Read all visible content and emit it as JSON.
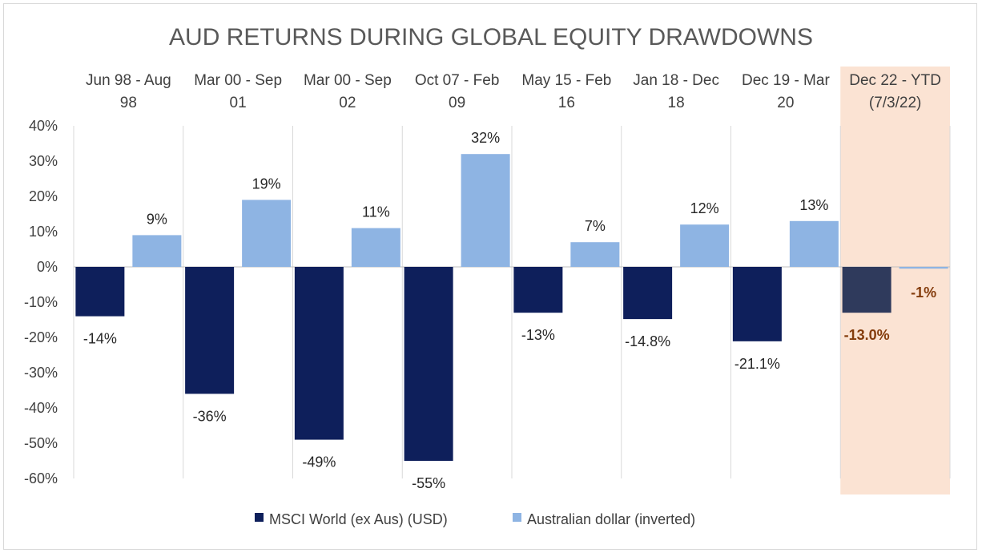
{
  "chart_data": {
    "type": "bar",
    "title": "AUD RETURNS DURING GLOBAL EQUITY DRAWDOWNS",
    "categories": [
      [
        "Jun 98 - Aug",
        "98"
      ],
      [
        "Mar 00 - Sep",
        "01"
      ],
      [
        "Mar 00 - Sep",
        "02"
      ],
      [
        "Oct 07 - Feb",
        "09"
      ],
      [
        "May 15 - Feb",
        "16"
      ],
      [
        "Jan 18 - Dec",
        "18"
      ],
      [
        "Dec 19 - Mar",
        "20"
      ],
      [
        "Dec 22 - YTD",
        "(7/3/22)"
      ]
    ],
    "highlight_index": 7,
    "series": [
      {
        "name": "MSCI World (ex Aus) (USD)",
        "color": "#0e1f5b",
        "highlight_color": "#2f3a5c",
        "values": [
          -14,
          -36,
          -49,
          -55,
          -13,
          -14.8,
          -21.1,
          -13.0
        ],
        "labels": [
          "-14%",
          "-36%",
          "-49%",
          "-55%",
          "-13%",
          "-14.8%",
          "-21.1%",
          "-13.0%"
        ]
      },
      {
        "name": "Australian dollar (inverted)",
        "color": "#8eb4e3",
        "highlight_color": "#8eb4e3",
        "values": [
          9,
          19,
          11,
          32,
          7,
          12,
          13,
          -0.5
        ],
        "labels": [
          "9%",
          "19%",
          "11%",
          "32%",
          "7%",
          "12%",
          "13%",
          "-1%"
        ]
      }
    ],
    "yticks": [
      "40%",
      "30%",
      "20%",
      "10%",
      "0%",
      "-10%",
      "-20%",
      "-30%",
      "-40%",
      "-50%",
      "-60%"
    ],
    "ylim": [
      -60,
      40
    ],
    "highlight_color": "#fbe3d3",
    "legend_position": "bottom"
  }
}
